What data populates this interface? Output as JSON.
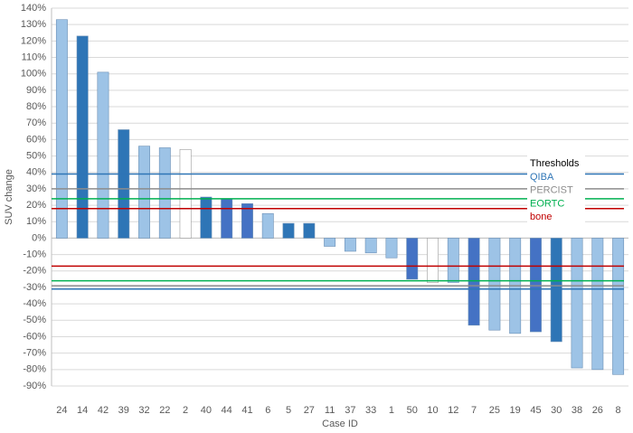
{
  "chart_data": {
    "type": "bar",
    "y_label": "SUV change",
    "x_label": "Case ID",
    "categories": [
      "24",
      "14",
      "42",
      "39",
      "32",
      "22",
      "2",
      "40",
      "44",
      "41",
      "6",
      "5",
      "27",
      "11",
      "37",
      "33",
      "1",
      "50",
      "10",
      "12",
      "7",
      "25",
      "19",
      "45",
      "30",
      "38",
      "26",
      "8"
    ],
    "values": [
      133,
      123,
      101,
      66,
      56,
      55,
      54,
      25,
      24,
      21,
      15,
      9,
      9,
      -5,
      -8,
      -9,
      -12,
      -25,
      -27,
      -27,
      -53,
      -56,
      -58,
      -57,
      -63,
      -79,
      -80,
      -83
    ],
    "colors": [
      "#9dc3e6",
      "#2e75b6",
      "#9dc3e6",
      "#2e75b6",
      "#9dc3e6",
      "#9dc3e6",
      "#ffffff",
      "#2e75b6",
      "#4472c4",
      "#4472c4",
      "#9dc3e6",
      "#2e75b6",
      "#2e75b6",
      "#9dc3e6",
      "#9dc3e6",
      "#9dc3e6",
      "#9dc3e6",
      "#4472c4",
      "#ffffff",
      "#9dc3e6",
      "#4472c4",
      "#9dc3e6",
      "#9dc3e6",
      "#4472c4",
      "#2e75b6",
      "#9dc3e6",
      "#9dc3e6",
      "#9dc3e6"
    ],
    "ylim": [
      -90,
      140
    ],
    "yticks": [
      {
        "value": -90,
        "label": "-90%"
      },
      {
        "value": -80,
        "label": "-80%"
      },
      {
        "value": -70,
        "label": "-70%"
      },
      {
        "value": -60,
        "label": "-60%"
      },
      {
        "value": -50,
        "label": "-50%"
      },
      {
        "value": -40,
        "label": "-40%"
      },
      {
        "value": -30,
        "label": "-30%"
      },
      {
        "value": -20,
        "label": "-20%"
      },
      {
        "value": -10,
        "label": "-10%"
      },
      {
        "value": 0,
        "label": "0%"
      },
      {
        "value": 10,
        "label": "10%"
      },
      {
        "value": 20,
        "label": "20%"
      },
      {
        "value": 30,
        "label": "30%"
      },
      {
        "value": 40,
        "label": "40%"
      },
      {
        "value": 50,
        "label": "50%"
      },
      {
        "value": 60,
        "label": "60%"
      },
      {
        "value": 70,
        "label": "70%"
      },
      {
        "value": 80,
        "label": "80%"
      },
      {
        "value": 90,
        "label": "90%"
      },
      {
        "value": 100,
        "label": "100%"
      },
      {
        "value": 110,
        "label": "110%"
      },
      {
        "value": 120,
        "label": "120%"
      },
      {
        "value": 130,
        "label": "130%"
      },
      {
        "value": 140,
        "label": "140%"
      }
    ],
    "grid": true,
    "legend_title": "Thresholds",
    "thresholds": [
      {
        "name": "QIBA",
        "color": "#2e75b6",
        "values": [
          39,
          -31
        ]
      },
      {
        "name": "PERCIST",
        "color": "#8c8c8c",
        "values": [
          30,
          -29
        ]
      },
      {
        "name": "EORTC",
        "color": "#00b050",
        "values": [
          24,
          -26
        ]
      },
      {
        "name": "bone",
        "color": "#c00000",
        "values": [
          18,
          -17
        ]
      }
    ]
  }
}
